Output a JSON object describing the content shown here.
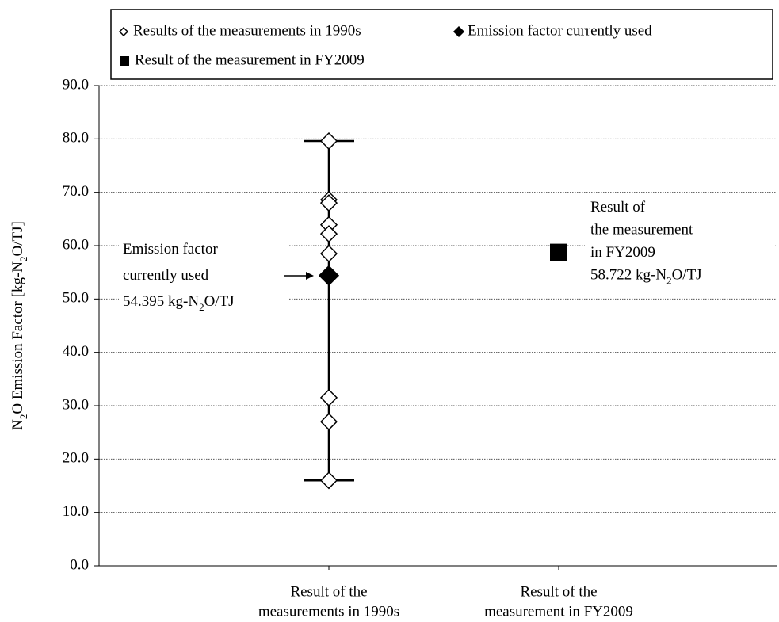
{
  "chart_data": {
    "type": "scatter",
    "ylabel": [
      "N",
      "2",
      "O Emission Factor [kg-N",
      "2",
      "O/TJ]"
    ],
    "categories": [
      [
        "Result of the",
        "measurements in 1990s"
      ],
      [
        "Result of the",
        "measurement in FY2009"
      ]
    ],
    "series": [
      {
        "name": "Results of the measurements in 1990s",
        "marker": "open-diamond",
        "color": "#000000",
        "category": 0,
        "values": [
          79.6,
          68.6,
          68.0,
          63.9,
          62.2,
          58.5,
          31.5,
          27.0,
          16.0
        ],
        "error_bar": {
          "low": 16.0,
          "high": 79.6
        }
      },
      {
        "name": "Emission factor currently used",
        "marker": "diamond",
        "color": "#000000",
        "category": 0,
        "values": [
          54.395
        ]
      },
      {
        "name": "Result of the measurement in FY2009",
        "marker": "square",
        "color": "#000000",
        "category": 1,
        "values": [
          58.722
        ]
      }
    ],
    "annotations": [
      {
        "lines": [
          [
            "Emission factor"
          ],
          [
            "currently used"
          ],
          [
            "54.395 kg-N",
            "2",
            "O/TJ"
          ]
        ]
      },
      {
        "lines": [
          [
            "Result of"
          ],
          [
            "the measurement"
          ],
          [
            "in FY2009"
          ],
          [
            "58.722 kg-N",
            "2",
            "O/TJ"
          ]
        ]
      }
    ],
    "ylim": [
      0,
      90
    ],
    "yticks": [
      {
        "value": 0,
        "label": "0.0"
      },
      {
        "value": 10,
        "label": "10.0"
      },
      {
        "value": 20,
        "label": "20.0"
      },
      {
        "value": 30,
        "label": "30.0"
      },
      {
        "value": 40,
        "label": "40.0"
      },
      {
        "value": 50,
        "label": "50.0"
      },
      {
        "value": 60,
        "label": "60.0"
      },
      {
        "value": 70,
        "label": "70.0"
      },
      {
        "value": 80,
        "label": "80.0"
      },
      {
        "value": 90,
        "label": "90.0"
      }
    ],
    "grid": true
  }
}
